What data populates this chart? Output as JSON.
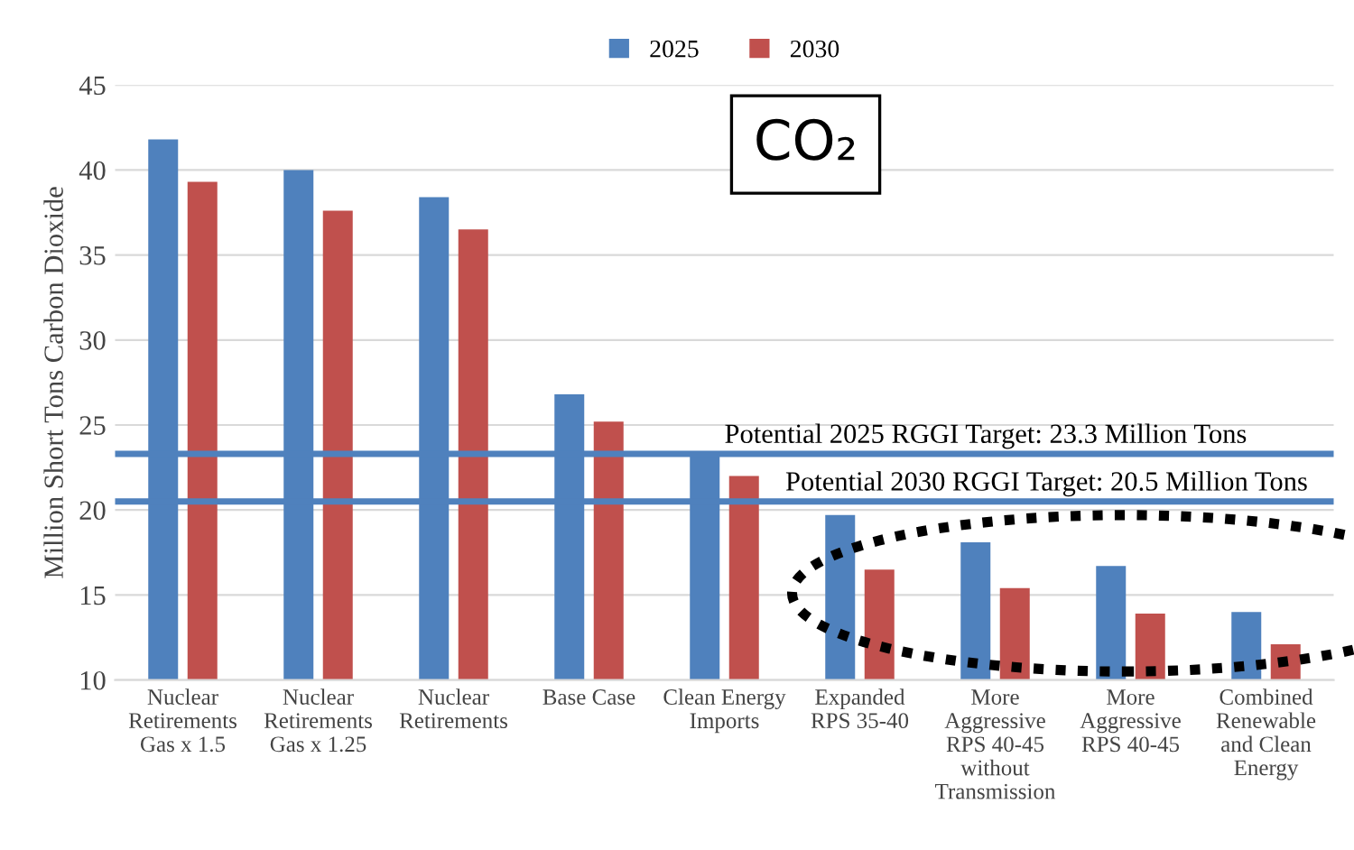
{
  "chart_data": {
    "type": "bar",
    "ylabel": "Million Short Tons Carbon Dioxide",
    "categories": [
      "Nuclear Retirements Gas x 1.5",
      "Nuclear Retirements Gas x 1.25",
      "Nuclear Retirements",
      "Base Case",
      "Clean Energy Imports",
      "Expanded RPS 35-40",
      "More Aggressive RPS 40-45 without Transmission",
      "More Aggressive RPS 40-45",
      "Combined Renewable and Clean Energy"
    ],
    "series": [
      {
        "name": "2025",
        "color": "#4f81bd",
        "values": [
          41.8,
          40.0,
          38.4,
          26.8,
          23.3,
          19.7,
          18.1,
          16.7,
          14.0
        ]
      },
      {
        "name": "2030",
        "color": "#c0504d",
        "values": [
          39.3,
          37.6,
          36.5,
          25.2,
          22.0,
          16.5,
          15.4,
          13.9,
          12.1
        ]
      }
    ],
    "ylim": [
      10,
      45
    ],
    "yticks": [
      10,
      15,
      20,
      25,
      30,
      35,
      40,
      45
    ],
    "grid": "y",
    "legend": "top",
    "ref_lines": [
      {
        "axis": "y",
        "value": 23.3,
        "label": "Potential 2025 RGGI Target: 23.3 Million Tons",
        "color": "#4f81bd"
      },
      {
        "axis": "y",
        "value": 20.5,
        "label": "Potential 2030 RGGI Target: 20.5 Million Tons",
        "color": "#4f81bd"
      }
    ],
    "annotations": [
      "CO₂"
    ]
  }
}
